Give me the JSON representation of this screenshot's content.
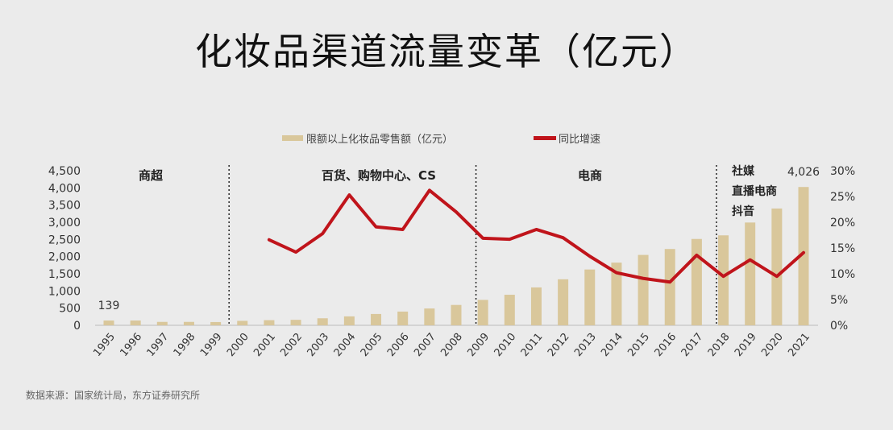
{
  "chart_data": {
    "type": "bar+line",
    "title": "化妆品渠道流量变革（亿元）",
    "categories": [
      "1995",
      "1996",
      "1997",
      "1998",
      "1999",
      "2000",
      "2001",
      "2002",
      "2003",
      "2004",
      "2005",
      "2006",
      "2007",
      "2008",
      "2009",
      "2010",
      "2011",
      "2012",
      "2013",
      "2014",
      "2015",
      "2016",
      "2017",
      "2018",
      "2019",
      "2020",
      "2021"
    ],
    "series": [
      {
        "name": "限额以上化妆品零售额（亿元）",
        "type": "bar",
        "axis": "left",
        "color": "#d9c79b",
        "values": [
          139,
          140,
          100,
          100,
          95,
          130,
          150,
          160,
          205,
          260,
          330,
          400,
          490,
          593,
          740,
          890,
          1103,
          1340,
          1625,
          1825,
          2049,
          2222,
          2514,
          2619,
          2992,
          3400,
          4026
        ]
      },
      {
        "name": "同比增速",
        "type": "line",
        "axis": "right",
        "color": "#c0141b",
        "values": [
          null,
          null,
          null,
          null,
          null,
          null,
          16.6,
          14.2,
          17.8,
          25.3,
          19.1,
          18.6,
          26.2,
          22.0,
          16.9,
          16.7,
          18.6,
          17.0,
          13.4,
          10.2,
          9.1,
          8.4,
          13.6,
          9.5,
          12.7,
          9.5,
          14.1
        ]
      }
    ],
    "y_left": {
      "range": [
        0,
        4500
      ],
      "ticks": [
        "0",
        "500",
        "1,000",
        "1,500",
        "2,000",
        "2,500",
        "3,000",
        "3,500",
        "4,000",
        "4,500"
      ]
    },
    "y_right": {
      "range": [
        0,
        30
      ],
      "ticks": [
        "0%",
        "5%",
        "10%",
        "15%",
        "20%",
        "25%",
        "30%"
      ]
    },
    "data_labels": [
      {
        "category": "1995",
        "text": "139"
      },
      {
        "category": "2021",
        "text": "4,026"
      }
    ],
    "eras": [
      {
        "label": "商超",
        "start": "1995"
      },
      {
        "label": "百货、购物中心、CS",
        "start": "2000"
      },
      {
        "label": "电商",
        "start": "2009"
      },
      {
        "label": "社媒\n直播电商\n抖音",
        "lines": [
          "社媒",
          "直播电商",
          "抖音"
        ],
        "start": "2018"
      }
    ],
    "legend": "top-right",
    "grid": false
  },
  "source": "数据来源：国家统计局，东方证券研究所"
}
